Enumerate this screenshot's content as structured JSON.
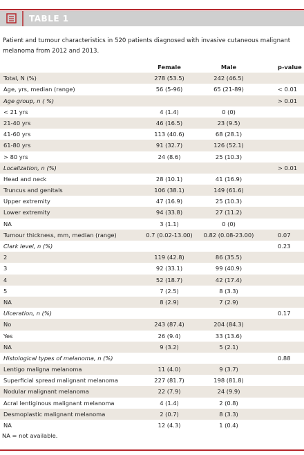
{
  "header": {
    "title": "TABLE 1"
  },
  "caption": "Patient and tumour characteristics in 520 patients diagnosed with invasive cutaneous malignant melanoma from 2012 and 2013.",
  "table": {
    "columns": [
      "Female",
      "Male",
      "p-value"
    ],
    "rows": [
      [
        "Total, N (%)",
        "278 (53.5)",
        "242 (46.5)",
        null
      ],
      [
        "Age, yrs, median (range)",
        "56 (5-96)",
        "65 (21-89)",
        "< 0.01"
      ],
      {
        "heading": "Age group, n ( %)",
        "p": "> 0.01"
      },
      [
        "< 21 yrs",
        "4 (1.4)",
        "0 (0)",
        null
      ],
      [
        "21-40 yrs",
        "46 (16.5)",
        "23 (9.5)",
        null
      ],
      [
        "41-60 yrs",
        "113 (40.6)",
        "68 (28.1)",
        null
      ],
      [
        "61-80 yrs",
        "91 (32.7)",
        "126 (52.1)",
        null
      ],
      [
        "> 80 yrs",
        "24 (8.6)",
        "25 (10.3)",
        null
      ],
      {
        "heading": "Localization, n (%)",
        "p": "> 0.01"
      },
      [
        "Head and neck",
        "28 (10.1)",
        "41 (16.9)",
        null
      ],
      [
        "Truncus and genitals",
        "106 (38.1)",
        "149 (61.6)",
        null
      ],
      [
        "Upper extremity",
        "47 (16.9)",
        "25 (10.3)",
        null
      ],
      [
        "Lower extremity",
        "94 (33.8)",
        "27 (11.2)",
        null
      ],
      [
        "NA",
        "3 (1.1)",
        "0 (0)",
        null
      ],
      [
        "Tumour thickness, mm, median (range)",
        "0.7 (0.02-13.00)",
        "0.82 (0.08-23.00)",
        "0.07"
      ],
      {
        "heading": "Clark level, n (%)",
        "p": "0.23"
      },
      [
        "2",
        "119 (42.8)",
        "86 (35.5)",
        null
      ],
      [
        "3",
        "92 (33.1)",
        "99 (40.9)",
        null
      ],
      [
        "4",
        "52 (18.7)",
        "42 (17.4)",
        null
      ],
      [
        "5",
        "7 (2.5)",
        "8 (3.3)",
        null
      ],
      [
        "NA",
        "8 (2.9)",
        "7 (2.9)",
        null
      ],
      {
        "heading": "Ulceration, n (%)",
        "p": "0.17"
      },
      [
        "No",
        "243 (87.4)",
        "204 (84.3)",
        null
      ],
      [
        "Yes",
        "26 (9.4)",
        "33 (13.6)",
        null
      ],
      [
        "NA",
        "9 (3.2)",
        "5 (2.1)",
        null
      ],
      {
        "heading": "Histological types of melanoma, n (%)",
        "p": "0.88"
      },
      [
        "Lentigo maligna melanoma",
        "11 (4.0)",
        "9 (3.7)",
        null
      ],
      [
        "Superficial spread malignant melanoma",
        "227 (81.7)",
        "198 (81.8)",
        null
      ],
      [
        "Nodular malignant melanoma",
        "22 (7.9)",
        "24 (9.9)",
        null
      ],
      [
        "Acral lentiginous malignant melanoma",
        "4 (1.4)",
        "2 (0.8)",
        null
      ],
      [
        "Desmoplastic malignant melanoma",
        "2 (0.7)",
        "8 (3.3)",
        null
      ],
      [
        "NA",
        "12 (4.3)",
        "1 (0.4)",
        null
      ]
    ]
  },
  "footnote": "NA = not available."
}
